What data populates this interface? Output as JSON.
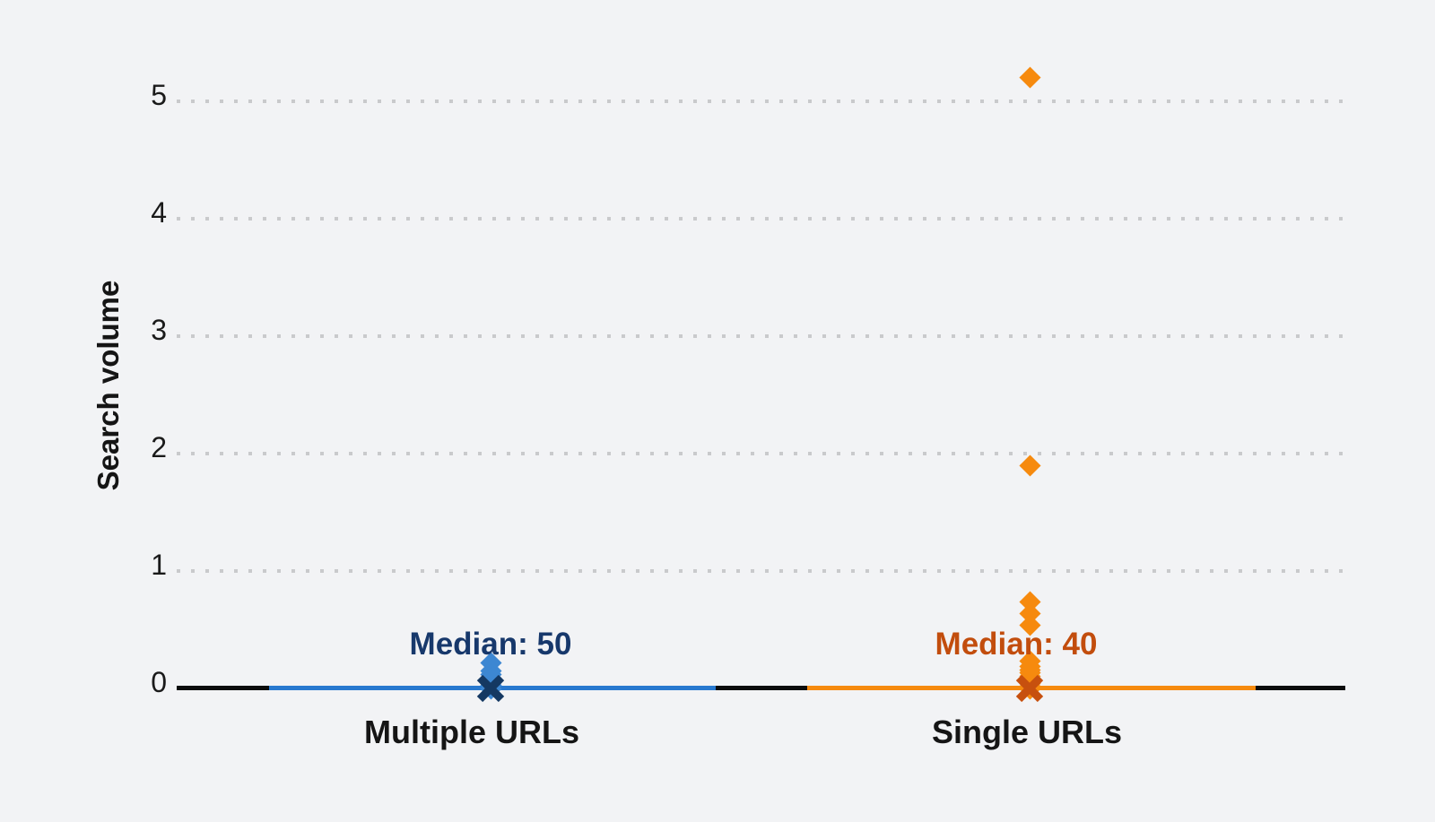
{
  "page": {
    "background": "#f2f3f5"
  },
  "chart_data": {
    "type": "scatter",
    "subtype": "strip-plot-with-median-markers",
    "title": "",
    "xlabel": "",
    "ylabel": "Search volume",
    "ylim": [
      0,
      5.5
    ],
    "yticks": [
      0,
      1,
      2,
      3,
      4,
      5
    ],
    "grid": "horizontal-dotted-at-1-to-5",
    "legend": "none",
    "marker_shape": "diamond",
    "median_marker_shape": "x",
    "axis_color": "#0c0c0c",
    "grid_color": "#c9cacc",
    "tick_color": "#1a1a1a",
    "label_color": "#151515",
    "background": "#f2f3f5",
    "categories": [
      {
        "label": "Multiple URLs",
        "median_label": "Median: 50",
        "median_value": 50,
        "median_marker_y": 0,
        "line_color": "#2879cf",
        "marker_color": "#3d87d2",
        "median_text_color": "#17386b",
        "median_marker_color": "#143862",
        "points": [
          0.22,
          0.15,
          0.12,
          0.09,
          0.06,
          0.03,
          0
        ]
      },
      {
        "label": "Single URLs",
        "median_label": "Median: 40",
        "median_value": 40,
        "median_marker_y": 0,
        "line_color": "#f68a0e",
        "marker_color": "#f68a0e",
        "median_text_color": "#c24d0d",
        "median_marker_color": "#c7500e",
        "points": [
          5.2,
          1.9,
          0.74,
          0.64,
          0.54,
          0.23,
          0.19,
          0.16,
          0.13,
          0.1,
          0.08,
          0.06,
          0.04,
          0.02,
          0.01,
          0
        ]
      }
    ]
  }
}
